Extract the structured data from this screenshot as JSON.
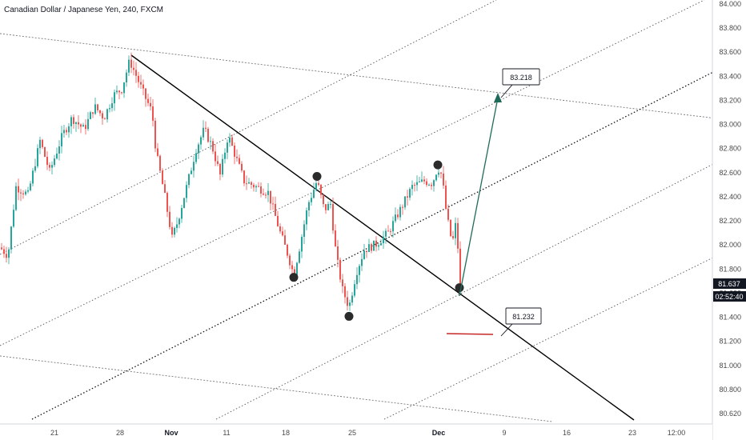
{
  "header": {
    "title": "Canadian Dollar / Japanese Yen, 240, FXCM"
  },
  "chart_data": {
    "type": "candlestick",
    "symbol": "CADJPY",
    "timeframe": "240",
    "broker": "FXCM",
    "ylim": [
      80.5,
      84.05
    ],
    "y_ticks": [
      "84.000",
      "83.800",
      "83.600",
      "83.400",
      "83.200",
      "83.000",
      "82.800",
      "82.600",
      "82.400",
      "82.200",
      "82.000",
      "81.800",
      "81.600",
      "81.400",
      "81.200",
      "81.000",
      "80.800",
      "80.620"
    ],
    "x_ticks": [
      {
        "label": "21",
        "bold": false
      },
      {
        "label": "28",
        "bold": false
      },
      {
        "label": "Nov",
        "bold": true
      },
      {
        "label": "11",
        "bold": false
      },
      {
        "label": "18",
        "bold": false
      },
      {
        "label": "25",
        "bold": false
      },
      {
        "label": "Dec",
        "bold": true
      },
      {
        "label": "9",
        "bold": false
      },
      {
        "label": "16",
        "bold": false
      },
      {
        "label": "23",
        "bold": false
      },
      {
        "label": "12:00",
        "bold": false
      }
    ],
    "price_path": [
      [
        0,
        81.92
      ],
      [
        10,
        81.85
      ],
      [
        20,
        82.45
      ],
      [
        35,
        82.38
      ],
      [
        50,
        82.85
      ],
      [
        62,
        82.58
      ],
      [
        78,
        82.9
      ],
      [
        90,
        83.05
      ],
      [
        105,
        82.95
      ],
      [
        118,
        83.15
      ],
      [
        130,
        83.05
      ],
      [
        142,
        83.25
      ],
      [
        152,
        83.3
      ],
      [
        162,
        83.55
      ],
      [
        170,
        83.42
      ],
      [
        180,
        83.25
      ],
      [
        190,
        83.1
      ],
      [
        195,
        82.75
      ],
      [
        205,
        82.4
      ],
      [
        215,
        82.0
      ],
      [
        222,
        82.15
      ],
      [
        235,
        82.5
      ],
      [
        245,
        82.78
      ],
      [
        255,
        82.95
      ],
      [
        265,
        82.8
      ],
      [
        275,
        82.55
      ],
      [
        285,
        82.9
      ],
      [
        295,
        82.7
      ],
      [
        305,
        82.5
      ],
      [
        320,
        82.45
      ],
      [
        335,
        82.4
      ],
      [
        350,
        82.05
      ],
      [
        360,
        81.85
      ],
      [
        367,
        81.68
      ],
      [
        375,
        81.95
      ],
      [
        385,
        82.3
      ],
      [
        396,
        82.5
      ],
      [
        405,
        82.25
      ],
      [
        413,
        82.3
      ],
      [
        420,
        81.85
      ],
      [
        428,
        81.55
      ],
      [
        436,
        81.4
      ],
      [
        445,
        81.7
      ],
      [
        455,
        81.9
      ],
      [
        470,
        81.95
      ],
      [
        485,
        82.05
      ],
      [
        500,
        82.25
      ],
      [
        515,
        82.45
      ],
      [
        530,
        82.5
      ],
      [
        540,
        82.48
      ],
      [
        547,
        82.62
      ],
      [
        552,
        82.55
      ],
      [
        558,
        82.2
      ],
      [
        565,
        81.95
      ],
      [
        570,
        82.15
      ],
      [
        575,
        81.58
      ]
    ],
    "annotations": [
      {
        "label": "83.218",
        "type": "target"
      },
      {
        "label": "81.232",
        "type": "level"
      }
    ],
    "markers": [
      {
        "time_px": 167,
        "price": 83.57,
        "kind": "high"
      },
      {
        "time_px": 367,
        "price": 81.66,
        "kind": "pivot"
      },
      {
        "time_px": 396,
        "price": 82.54,
        "kind": "pivot"
      },
      {
        "time_px": 436,
        "price": 81.32,
        "kind": "pivot"
      },
      {
        "time_px": 547,
        "price": 82.64,
        "kind": "pivot"
      },
      {
        "time_px": 574,
        "price": 81.57,
        "kind": "pivot"
      }
    ],
    "current_price": {
      "value": "81.637",
      "countdown": "02:52:40"
    },
    "colors": {
      "up": "#26a69a",
      "down": "#ef5350",
      "arrow": "#1e6b5a",
      "badge": "#131722",
      "red_level": "#c62828"
    },
    "grid": false,
    "legend": "none"
  }
}
